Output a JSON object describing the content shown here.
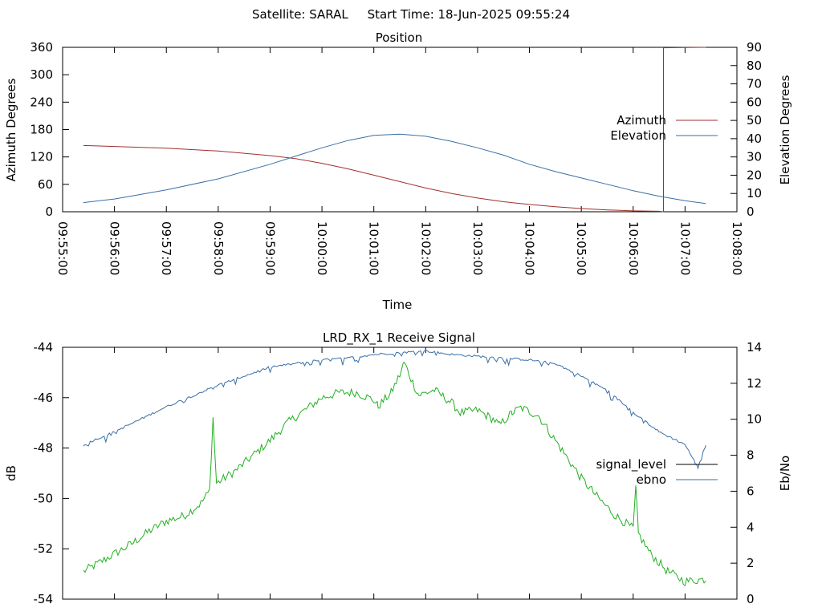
{
  "header": {
    "title": "Satellite: SARAL     Start Time: 18-Jun-2025 09:55:24"
  },
  "chart_data": [
    {
      "type": "line",
      "title": "Position",
      "xlabel": "Time",
      "ylabel": "Azimuth Degrees",
      "y2label": "Elevation Degrees",
      "x_ticks": [
        "09:55:00",
        "09:56:00",
        "09:57:00",
        "09:58:00",
        "09:59:00",
        "10:00:00",
        "10:01:00",
        "10:02:00",
        "10:03:00",
        "10:04:00",
        "10:05:00",
        "10:06:00",
        "10:07:00",
        "10:08:00"
      ],
      "xlim": [
        "09:55:00",
        "10:08:00"
      ],
      "ylim": [
        0,
        360
      ],
      "y_ticks": [
        0,
        60,
        120,
        180,
        240,
        300,
        360
      ],
      "y2lim": [
        0,
        90
      ],
      "y2_ticks": [
        0,
        10,
        20,
        30,
        40,
        50,
        60,
        70,
        80,
        90
      ],
      "legend_position": "right",
      "grid": false,
      "series": [
        {
          "name": "Azimuth",
          "axis": "left",
          "color": "#a0302c",
          "points": [
            [
              "09:55:24",
              145
            ],
            [
              "09:56:00",
              143
            ],
            [
              "09:57:00",
              139
            ],
            [
              "09:58:00",
              133
            ],
            [
              "09:59:00",
              123
            ],
            [
              "09:59:30",
              116
            ],
            [
              "10:00:00",
              106
            ],
            [
              "10:00:30",
              94
            ],
            [
              "10:01:00",
              80
            ],
            [
              "10:01:30",
              66
            ],
            [
              "10:02:00",
              52
            ],
            [
              "10:02:30",
              40
            ],
            [
              "10:03:00",
              30
            ],
            [
              "10:03:30",
              22
            ],
            [
              "10:04:00",
              16
            ],
            [
              "10:04:30",
              11
            ],
            [
              "10:05:00",
              7
            ],
            [
              "10:05:30",
              4
            ],
            [
              "10:06:00",
              2
            ],
            [
              "10:06:30",
              1
            ],
            [
              "10:06:35",
              0
            ],
            [
              "10:06:35",
              359
            ],
            [
              "10:07:00",
              359.5
            ],
            [
              "10:07:24",
              360
            ]
          ]
        },
        {
          "name": "Elevation",
          "axis": "right",
          "color": "#3a6fa5",
          "points": [
            [
              "09:55:24",
              5
            ],
            [
              "09:56:00",
              7
            ],
            [
              "09:57:00",
              12
            ],
            [
              "09:58:00",
              18
            ],
            [
              "09:59:00",
              26
            ],
            [
              "09:59:30",
              30.5
            ],
            [
              "10:00:00",
              35
            ],
            [
              "10:00:30",
              39
            ],
            [
              "10:01:00",
              41.8
            ],
            [
              "10:01:30",
              42.5
            ],
            [
              "10:02:00",
              41.3
            ],
            [
              "10:02:30",
              38.5
            ],
            [
              "10:03:00",
              35
            ],
            [
              "10:03:30",
              31
            ],
            [
              "10:04:00",
              26
            ],
            [
              "10:04:30",
              22
            ],
            [
              "10:05:00",
              18.5
            ],
            [
              "10:05:30",
              15
            ],
            [
              "10:06:00",
              11.5
            ],
            [
              "10:06:30",
              8.5
            ],
            [
              "10:07:00",
              6
            ],
            [
              "10:07:24",
              4.5
            ]
          ]
        }
      ]
    },
    {
      "type": "line",
      "title": "LRD_RX_1 Receive Signal",
      "xlabel": "",
      "ylabel": "dB",
      "y2label": "Eb/No",
      "xlim": [
        "09:55:00",
        "10:08:00"
      ],
      "ylim": [
        -54,
        -44
      ],
      "y_ticks": [
        -54,
        -52,
        -50,
        -48,
        -46,
        -44
      ],
      "y2lim": [
        0,
        14
      ],
      "y2_ticks": [
        0,
        2,
        4,
        6,
        8,
        10,
        12,
        14
      ],
      "legend_position": "right",
      "grid": false,
      "series": [
        {
          "name": "signal_level",
          "axis": "left",
          "color": "#22b022",
          "legend_color": "#000000",
          "points": [
            [
              "09:55:24",
              -52.9
            ],
            [
              "09:55:40",
              -52.6
            ],
            [
              "09:56:00",
              -52.2
            ],
            [
              "09:56:20",
              -51.8
            ],
            [
              "09:56:40",
              -51.3
            ],
            [
              "09:57:00",
              -50.9
            ],
            [
              "09:57:20",
              -50.7
            ],
            [
              "09:57:40",
              -50.2
            ],
            [
              "09:57:50",
              -49.7
            ],
            [
              "09:57:54",
              -46.8
            ],
            [
              "09:57:58",
              -49.4
            ],
            [
              "09:58:20",
              -48.9
            ],
            [
              "09:58:40",
              -48.3
            ],
            [
              "09:59:00",
              -47.7
            ],
            [
              "09:59:20",
              -47.0
            ],
            [
              "09:59:40",
              -46.5
            ],
            [
              "10:00:00",
              -46.0
            ],
            [
              "10:00:20",
              -45.8
            ],
            [
              "10:00:40",
              -45.8
            ],
            [
              "10:01:00",
              -46.1
            ],
            [
              "10:01:05",
              -46.35
            ],
            [
              "10:01:20",
              -45.8
            ],
            [
              "10:01:30",
              -45.1
            ],
            [
              "10:01:35",
              -44.6
            ],
            [
              "10:01:45",
              -45.4
            ],
            [
              "10:01:52",
              -45.9
            ],
            [
              "10:02:10",
              -45.7
            ],
            [
              "10:02:30",
              -46.2
            ],
            [
              "10:02:40",
              -46.6
            ],
            [
              "10:03:00",
              -46.5
            ],
            [
              "10:03:20",
              -46.9
            ],
            [
              "10:03:25",
              -47.1
            ],
            [
              "10:03:40",
              -46.6
            ],
            [
              "10:03:50",
              -46.4
            ],
            [
              "10:04:10",
              -46.7
            ],
            [
              "10:04:20",
              -47.2
            ],
            [
              "10:04:40",
              -48.2
            ],
            [
              "10:05:00",
              -49.2
            ],
            [
              "10:05:20",
              -50.0
            ],
            [
              "10:05:40",
              -50.7
            ],
            [
              "10:06:00",
              -51.2
            ],
            [
              "10:06:03",
              -49.6
            ],
            [
              "10:06:06",
              -51.4
            ],
            [
              "10:06:20",
              -52.2
            ],
            [
              "10:06:40",
              -52.9
            ],
            [
              "10:07:00",
              -53.3
            ],
            [
              "10:07:24",
              -53.2
            ]
          ]
        },
        {
          "name": "ebno",
          "axis": "right",
          "color": "#3a6fa5",
          "points": [
            [
              "09:55:24",
              8.6
            ],
            [
              "09:56:00",
              9.3
            ],
            [
              "09:56:30",
              10.0
            ],
            [
              "09:57:00",
              10.7
            ],
            [
              "09:57:30",
              11.3
            ],
            [
              "09:58:00",
              11.9
            ],
            [
              "09:58:30",
              12.4
            ],
            [
              "09:59:00",
              12.9
            ],
            [
              "09:59:30",
              13.1
            ],
            [
              "10:00:00",
              13.3
            ],
            [
              "10:00:30",
              13.4
            ],
            [
              "10:01:00",
              13.6
            ],
            [
              "10:01:30",
              13.7
            ],
            [
              "10:02:00",
              13.8
            ],
            [
              "10:02:30",
              13.6
            ],
            [
              "10:03:00",
              13.5
            ],
            [
              "10:03:30",
              13.4
            ],
            [
              "10:04:00",
              13.3
            ],
            [
              "10:04:30",
              13.1
            ],
            [
              "10:05:00",
              12.4
            ],
            [
              "10:05:30",
              11.6
            ],
            [
              "10:06:00",
              10.4
            ],
            [
              "10:06:30",
              9.3
            ],
            [
              "10:07:00",
              8.6
            ],
            [
              "10:07:15",
              7.3
            ],
            [
              "10:07:24",
              8.6
            ]
          ]
        }
      ]
    }
  ]
}
